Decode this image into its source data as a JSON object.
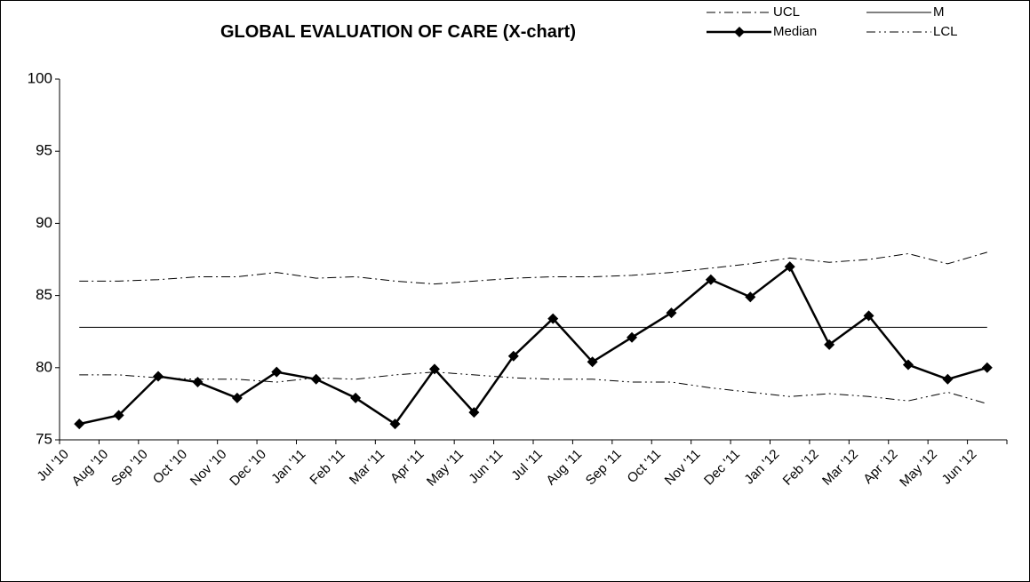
{
  "chart_data": {
    "type": "line",
    "title": "GLOBAL EVALUATION OF CARE  (X-chart)",
    "categories": [
      "Jul '10",
      "Aug '10",
      "Sep '10",
      "Oct '10",
      "Nov '10",
      "Dec '10",
      "Jan '11",
      "Feb '11",
      "Mar '11",
      "Apr '11",
      "May '11",
      "Jun '11",
      "Jul '11",
      "Aug '11",
      "Sep '11",
      "Oct '11",
      "Nov '11",
      "Dec '11",
      "Jan '12",
      "Feb '12",
      "Mar '12",
      "Apr '12",
      "May '12",
      "Jun '12"
    ],
    "series": [
      {
        "name": "UCL",
        "color": "#000000",
        "dash": "dash-dot",
        "width": 1,
        "values": [
          86.0,
          86.0,
          86.1,
          86.3,
          86.3,
          86.6,
          86.2,
          86.3,
          86.0,
          85.8,
          86.0,
          86.2,
          86.3,
          86.3,
          86.4,
          86.6,
          86.9,
          87.2,
          87.6,
          87.3,
          87.5,
          87.9,
          87.2,
          88.0
        ]
      },
      {
        "name": "M",
        "color": "#000000",
        "dash": "solid",
        "width": 1,
        "values": [
          82.8,
          82.8,
          82.8,
          82.8,
          82.8,
          82.8,
          82.8,
          82.8,
          82.8,
          82.8,
          82.8,
          82.8,
          82.8,
          82.8,
          82.8,
          82.8,
          82.8,
          82.8,
          82.8,
          82.8,
          82.8,
          82.8,
          82.8,
          82.8
        ]
      },
      {
        "name": "Median",
        "color": "#000000",
        "dash": "solid",
        "width": 2.5,
        "marker": "diamond",
        "values": [
          76.1,
          76.7,
          79.4,
          79.0,
          77.9,
          79.7,
          79.2,
          77.9,
          76.1,
          79.9,
          76.9,
          80.8,
          83.4,
          80.4,
          82.1,
          83.8,
          86.1,
          84.9,
          87.0,
          81.6,
          83.6,
          80.2,
          79.2,
          80.0
        ]
      },
      {
        "name": "LCL",
        "color": "#000000",
        "dash": "dash-dot-dot",
        "width": 1,
        "values": [
          79.5,
          79.5,
          79.3,
          79.2,
          79.2,
          79.0,
          79.3,
          79.2,
          79.5,
          79.7,
          79.5,
          79.3,
          79.2,
          79.2,
          79.0,
          79.0,
          78.6,
          78.3,
          78.0,
          78.2,
          78.0,
          77.7,
          78.3,
          77.5
        ]
      }
    ],
    "ylim": [
      75,
      100
    ],
    "yticks": [
      75,
      80,
      85,
      90,
      95,
      100
    ],
    "grid": false,
    "legend": "top-right"
  }
}
